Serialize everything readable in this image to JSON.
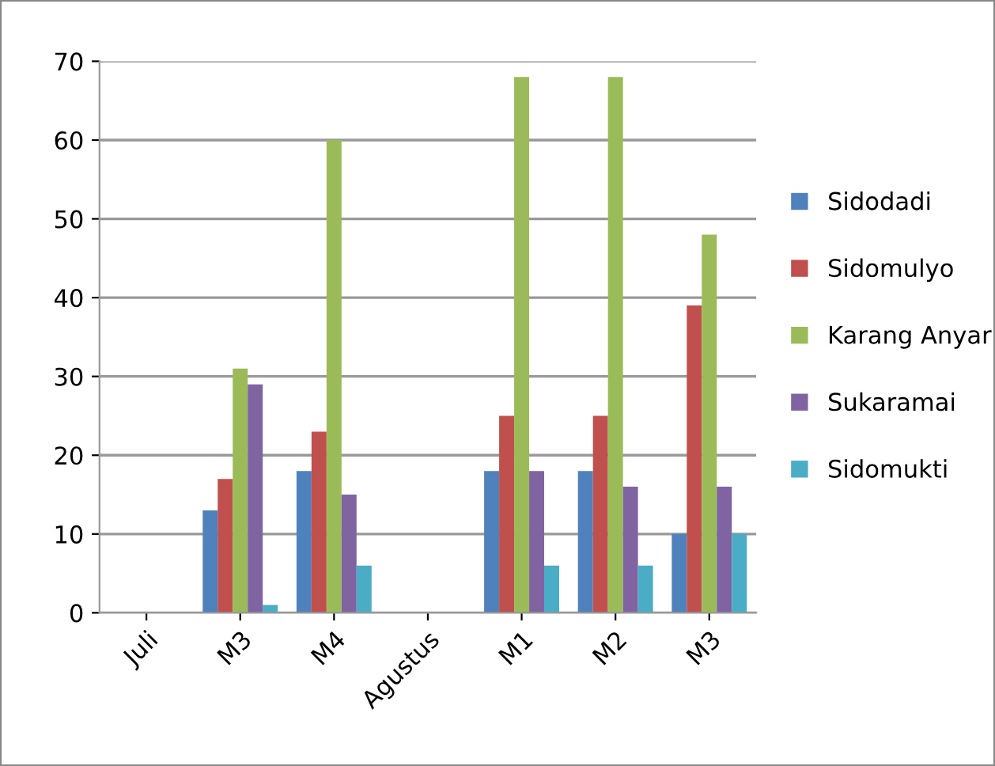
{
  "chart_data": {
    "type": "bar",
    "categories": [
      "Juli",
      "M3",
      "M4",
      "Agustus",
      "M1",
      "M2",
      "M3"
    ],
    "series": [
      {
        "name": "Sidodadi",
        "color": "#4f81bd",
        "values": [
          null,
          13,
          18,
          null,
          18,
          18,
          10
        ]
      },
      {
        "name": "Sidomulyo",
        "color": "#c0504d",
        "values": [
          null,
          17,
          23,
          null,
          25,
          25,
          39
        ]
      },
      {
        "name": "Karang Anyar",
        "color": "#9bbb59",
        "values": [
          null,
          31,
          60,
          null,
          68,
          68,
          48
        ]
      },
      {
        "name": "Sukaramai",
        "color": "#8064a2",
        "values": [
          null,
          29,
          15,
          null,
          18,
          16,
          16
        ]
      },
      {
        "name": "Sidomukti",
        "color": "#4bacc6",
        "values": [
          null,
          1,
          6,
          null,
          6,
          6,
          10
        ]
      }
    ],
    "ylim": [
      0,
      70
    ],
    "yticks": [
      0,
      10,
      20,
      30,
      40,
      50,
      60,
      70
    ],
    "grid": "y",
    "legend": "right"
  }
}
